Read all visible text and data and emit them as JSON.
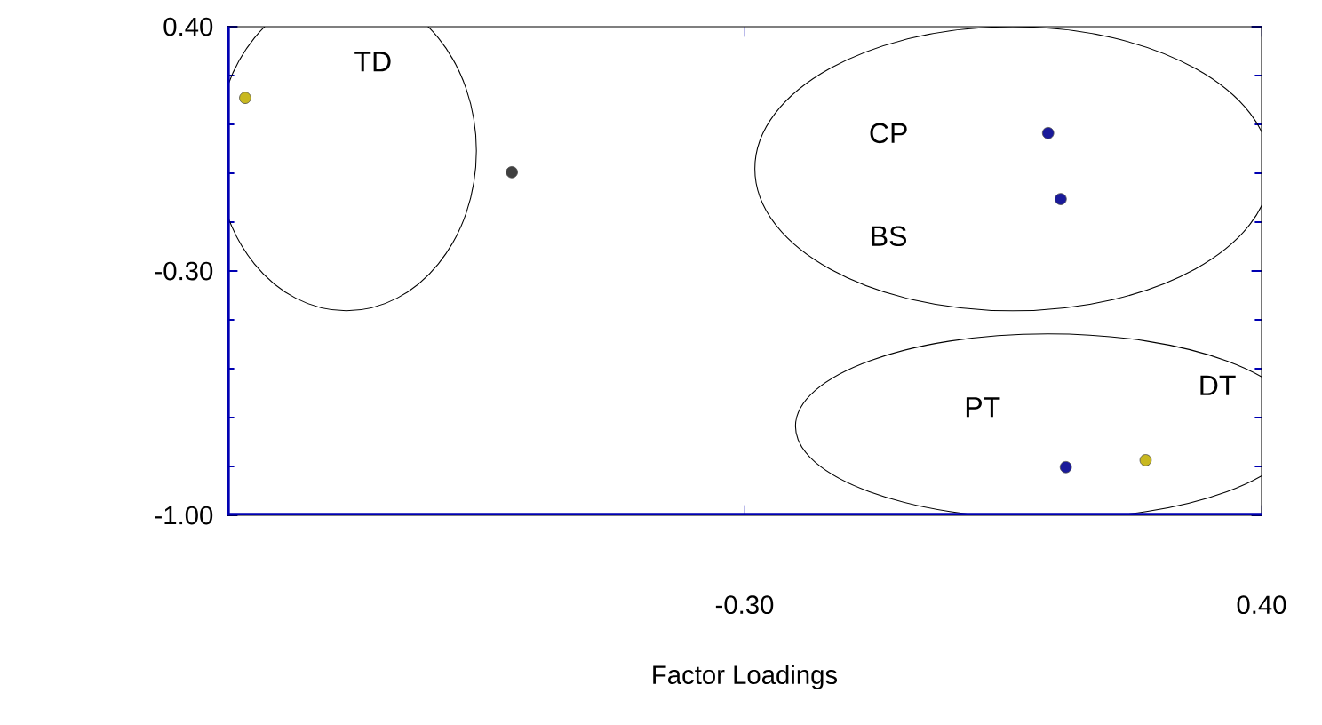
{
  "chart_data": {
    "type": "scatter",
    "xlabel": "Factor Loadings",
    "x": [
      -0.976,
      -0.615,
      0.111,
      0.128,
      0.135,
      0.243
    ],
    "values": [
      0.196,
      -0.017,
      0.095,
      -0.094,
      -0.862,
      -0.842
    ],
    "colors": [
      "#c8b820",
      "#404040",
      "#1a1a9a",
      "#1a1a9a",
      "#1a1a9a",
      "#c8b820"
    ],
    "marker": "circle",
    "xlim": [
      -1.0,
      0.4
    ],
    "ylim": [
      -1.0,
      0.4
    ],
    "xticks": [
      {
        "value": -0.3,
        "label": "-0.30"
      },
      {
        "value": 0.4,
        "label": "0.40"
      }
    ],
    "yticks": [
      {
        "value": -1.0,
        "label": "-1.00"
      },
      {
        "value": -0.3,
        "label": "-0.30"
      },
      {
        "value": 0.4,
        "label": "0.40"
      }
    ],
    "annotations": [
      "TD",
      "CP",
      "BS",
      "PT",
      "DT"
    ]
  }
}
